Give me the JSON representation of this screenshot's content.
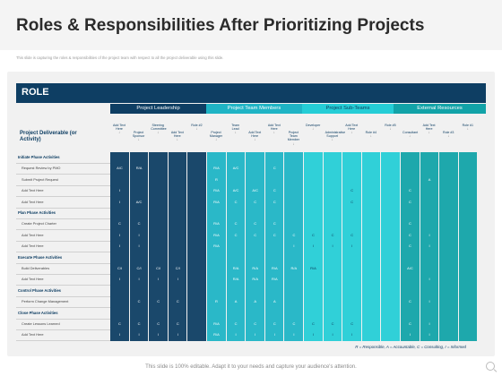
{
  "title": "Roles & Responsibilities After Prioritizing Projects",
  "subtitle": "This slide is capturing the roles & responsibilities of the project team with respect to all the project deliverable using this slide.",
  "role_label": "ROLE",
  "groups": [
    "Project Leadership",
    "Project Team Members",
    "Project Sub-Teams",
    "External Resources"
  ],
  "deliverable_label": "Project Deliverable (or Activity)",
  "columns": [
    "Add Text Here",
    "Project Sponsor",
    "Steering Committee",
    "Add Text Here",
    "Role #2",
    "Project Manager",
    "Team Lead",
    "Add Text Here",
    "Add Text Here",
    "Project Team Member",
    "Developer",
    "Administrative Support",
    "Add Text Here",
    "Role #4",
    "Role #5",
    "Consultant",
    "Add Text Here",
    "Role #3",
    "Role #1"
  ],
  "rows": [
    {
      "label": "Initiate Phase Activities",
      "section": true
    },
    {
      "label": "Request Review by PMO",
      "cells": [
        "A/C",
        "R/A",
        "",
        "",
        "",
        "R/A",
        "A/C",
        "",
        "C",
        "",
        "",
        "",
        "",
        "",
        "",
        "",
        "",
        "",
        ""
      ]
    },
    {
      "label": "Submit Project Request",
      "cells": [
        "",
        "",
        "",
        "",
        "",
        "R",
        "",
        "",
        "",
        "",
        "",
        "",
        "",
        "",
        "",
        "",
        "A",
        "",
        ""
      ]
    },
    {
      "label": "Add Text Here",
      "cells": [
        "I",
        "",
        "",
        "",
        "",
        "R/A",
        "A/C",
        "A/C",
        "C",
        "",
        "",
        "",
        "C",
        "",
        "",
        "C",
        "",
        "",
        ""
      ]
    },
    {
      "label": "Add Text Here",
      "cells": [
        "I",
        "A/C",
        "",
        "",
        "",
        "R/A",
        "C",
        "C",
        "C",
        "",
        "",
        "",
        "C",
        "",
        "",
        "C",
        "",
        "",
        ""
      ]
    },
    {
      "label": "Plan Phase Activities",
      "section": true
    },
    {
      "label": "Create Project Charter",
      "cells": [
        "C",
        "C",
        "",
        "",
        "",
        "R/A",
        "C",
        "C",
        "C",
        "",
        "",
        "",
        "",
        "",
        "",
        "C",
        "",
        "",
        ""
      ]
    },
    {
      "label": "Add Text Here",
      "cells": [
        "I",
        "I",
        "",
        "",
        "",
        "R/A",
        "C",
        "C",
        "C",
        "C",
        "C",
        "C",
        "C",
        "",
        "",
        "C",
        "I",
        "",
        ""
      ]
    },
    {
      "label": "Add Text Here",
      "cells": [
        "I",
        "I",
        "",
        "",
        "",
        "R/A",
        "",
        "",
        "",
        "I",
        "I",
        "I",
        "I",
        "",
        "",
        "C",
        "I",
        "",
        ""
      ]
    },
    {
      "label": "Execute Phase Activities",
      "section": true
    },
    {
      "label": "Build Deliverables",
      "cells": [
        "C/I",
        "C/I",
        "C/I",
        "C/I",
        "",
        "",
        "R/A",
        "R/A",
        "R/A",
        "R/A",
        "R/A",
        "",
        "",
        "",
        "",
        "A/C",
        "",
        "",
        ""
      ]
    },
    {
      "label": "Add Text Here",
      "cells": [
        "I",
        "I",
        "I",
        "I",
        "",
        "",
        "R/A",
        "R/A",
        "R/A",
        "",
        "",
        "",
        "",
        "",
        "",
        "",
        "I",
        "",
        ""
      ]
    },
    {
      "label": "Control Phase Activities",
      "section": true
    },
    {
      "label": "Perform Change Management",
      "cells": [
        "",
        "C",
        "C",
        "C",
        "",
        "R",
        "A",
        "A",
        "A",
        "",
        "",
        "",
        "",
        "",
        "",
        "C",
        "I",
        "",
        ""
      ]
    },
    {
      "label": "Close Phase Activities",
      "section": true
    },
    {
      "label": "Create Lessons Learned",
      "cells": [
        "C",
        "C",
        "C",
        "C",
        "",
        "R/A",
        "C",
        "C",
        "C",
        "C",
        "C",
        "C",
        "C",
        "",
        "",
        "C",
        "I",
        "",
        ""
      ]
    },
    {
      "label": "Add Text Here",
      "cells": [
        "I",
        "I",
        "I",
        "I",
        "",
        "R/A",
        "I",
        "I",
        "I",
        "I",
        "I",
        "I",
        "I",
        "",
        "",
        "I",
        "I",
        "",
        ""
      ]
    }
  ],
  "legend": "R = Responsible, A = Accountable, C = Consulting, I = Informed",
  "footer": "This slide is 100% editable. Adapt it to your needs and capture your audience's attention.",
  "colors": {
    "navy": "#0e3e63",
    "teal": "#1fb4c5",
    "cyan": "#25cdd6",
    "sea": "#12a3a8"
  }
}
